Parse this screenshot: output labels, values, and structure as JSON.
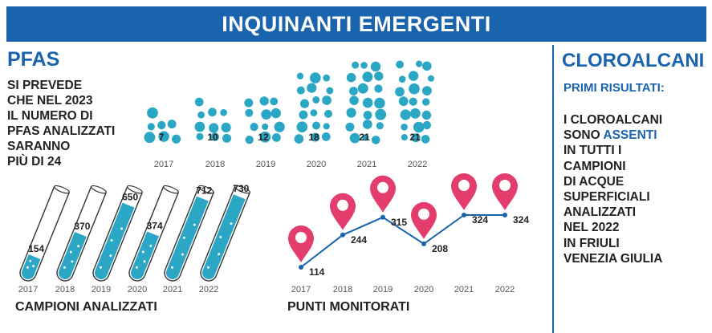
{
  "banner": {
    "title": "INQUINANTI EMERGENTI"
  },
  "pfas": {
    "title": "PFAS",
    "lines": [
      "SI PREVEDE",
      "CHE NEL 2023",
      "IL NUMERO DI",
      "PFAS ANALIZZATI",
      "SARANNO",
      "PIÙ DI 24"
    ]
  },
  "cloroalcani": {
    "title": "CLOROALCANI",
    "subtitle": "PRIMI RISULTATI:",
    "lines_before": [
      "I CLOROALCANI",
      "SONO"
    ],
    "highlight": "ASSENTI",
    "lines_after": [
      "IN TUTTI I",
      "CAMPIONI",
      "DI ACQUE",
      "SUPERFICIALI",
      "ANALIZZATI",
      "NEL 2022",
      "IN FRIULI",
      "VENEZIA GIULIA"
    ]
  },
  "labels": {
    "campioni": "CAMPIONI ANALIZZATI",
    "punti": "PUNTI MONITORATI"
  },
  "colors": {
    "brand_blue": "#1a64ad",
    "teal": "#2ba6c4",
    "pin": "#e23d6d",
    "text": "#222222"
  },
  "chart_data": [
    {
      "type": "bar",
      "title": "",
      "categories": [
        "2017",
        "2018",
        "2019",
        "2020",
        "2021",
        "2022"
      ],
      "values": [
        7,
        10,
        12,
        18,
        21,
        21
      ],
      "xlabel": "",
      "ylabel": "",
      "encoding": "dot clusters"
    },
    {
      "type": "bar",
      "title": "CAMPIONI ANALIZZATI",
      "categories": [
        "2017",
        "2018",
        "2019",
        "2020",
        "2021",
        "2022"
      ],
      "values": [
        154,
        370,
        650,
        374,
        712,
        730
      ],
      "xlabel": "",
      "ylabel": "",
      "encoding": "test tubes"
    },
    {
      "type": "line",
      "title": "PUNTI MONITORATI",
      "categories": [
        "2017",
        "2018",
        "2019",
        "2020",
        "2021",
        "2022"
      ],
      "values": [
        114,
        244,
        315,
        208,
        324,
        324
      ],
      "xlabel": "",
      "ylabel": ""
    }
  ]
}
